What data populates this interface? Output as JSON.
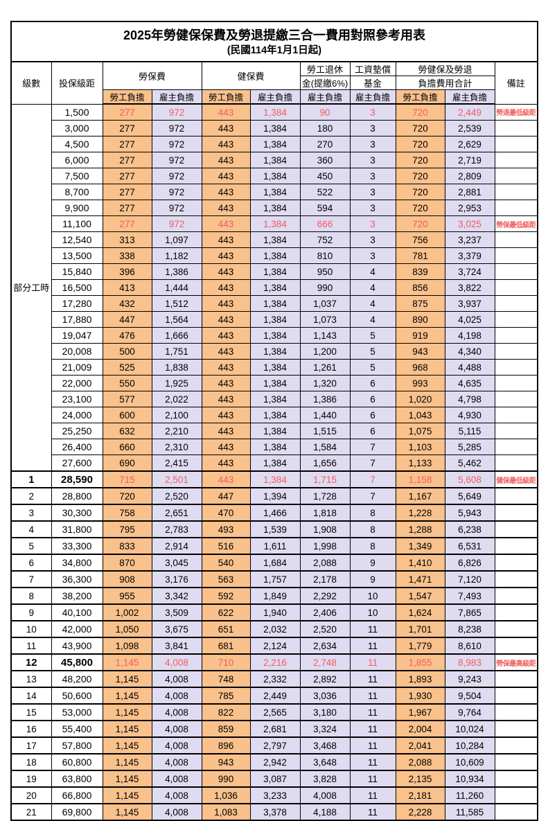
{
  "title": "2025年勞健保保費及勞退提繳三合一費用對照參考用表",
  "subtitle": "(民國114年1月1日起)",
  "columns": {
    "level": "級數",
    "bracket": "投保級距",
    "labor_insurance": "勞保費",
    "health_insurance": "健保費",
    "pension_line1": "勞工退休",
    "pension_line2": "金(提繳6%)",
    "wage_fund_line1": "工資墊償",
    "wage_fund_line2": "基金",
    "total_line1": "勞健保及勞退",
    "total_line2": "負擔費用合計",
    "remark": "備註",
    "employee": "勞工負擔",
    "employer": "雇主負擔"
  },
  "part_time_label": "部分工時",
  "colors": {
    "employee_bg": "#F9C18C",
    "employer_bg": "#DFDBF1",
    "highlight_text": "#F25C5C"
  },
  "rows": [
    {
      "level": "",
      "bracket": "1,500",
      "li_emp": "277",
      "li_er": "972",
      "hi_emp": "443",
      "hi_er": "1,384",
      "pension": "90",
      "fund": "3",
      "tot_emp": "720",
      "tot_er": "2,449",
      "remark": "勞退最低級距",
      "red": true,
      "bold": false
    },
    {
      "level": "",
      "bracket": "3,000",
      "li_emp": "277",
      "li_er": "972",
      "hi_emp": "443",
      "hi_er": "1,384",
      "pension": "180",
      "fund": "3",
      "tot_emp": "720",
      "tot_er": "2,539",
      "remark": "",
      "red": false,
      "bold": false
    },
    {
      "level": "",
      "bracket": "4,500",
      "li_emp": "277",
      "li_er": "972",
      "hi_emp": "443",
      "hi_er": "1,384",
      "pension": "270",
      "fund": "3",
      "tot_emp": "720",
      "tot_er": "2,629",
      "remark": "",
      "red": false,
      "bold": false
    },
    {
      "level": "",
      "bracket": "6,000",
      "li_emp": "277",
      "li_er": "972",
      "hi_emp": "443",
      "hi_er": "1,384",
      "pension": "360",
      "fund": "3",
      "tot_emp": "720",
      "tot_er": "2,719",
      "remark": "",
      "red": false,
      "bold": false
    },
    {
      "level": "",
      "bracket": "7,500",
      "li_emp": "277",
      "li_er": "972",
      "hi_emp": "443",
      "hi_er": "1,384",
      "pension": "450",
      "fund": "3",
      "tot_emp": "720",
      "tot_er": "2,809",
      "remark": "",
      "red": false,
      "bold": false
    },
    {
      "level": "",
      "bracket": "8,700",
      "li_emp": "277",
      "li_er": "972",
      "hi_emp": "443",
      "hi_er": "1,384",
      "pension": "522",
      "fund": "3",
      "tot_emp": "720",
      "tot_er": "2,881",
      "remark": "",
      "red": false,
      "bold": false
    },
    {
      "level": "",
      "bracket": "9,900",
      "li_emp": "277",
      "li_er": "972",
      "hi_emp": "443",
      "hi_er": "1,384",
      "pension": "594",
      "fund": "3",
      "tot_emp": "720",
      "tot_er": "2,953",
      "remark": "",
      "red": false,
      "bold": false
    },
    {
      "level": "",
      "bracket": "11,100",
      "li_emp": "277",
      "li_er": "972",
      "hi_emp": "443",
      "hi_er": "1,384",
      "pension": "666",
      "fund": "3",
      "tot_emp": "720",
      "tot_er": "3,025",
      "remark": "勞保最低級距",
      "red": true,
      "bold": false
    },
    {
      "level": "",
      "bracket": "12,540",
      "li_emp": "313",
      "li_er": "1,097",
      "hi_emp": "443",
      "hi_er": "1,384",
      "pension": "752",
      "fund": "3",
      "tot_emp": "756",
      "tot_er": "3,237",
      "remark": "",
      "red": false,
      "bold": false
    },
    {
      "level": "",
      "bracket": "13,500",
      "li_emp": "338",
      "li_er": "1,182",
      "hi_emp": "443",
      "hi_er": "1,384",
      "pension": "810",
      "fund": "3",
      "tot_emp": "781",
      "tot_er": "3,379",
      "remark": "",
      "red": false,
      "bold": false
    },
    {
      "level": "",
      "bracket": "15,840",
      "li_emp": "396",
      "li_er": "1,386",
      "hi_emp": "443",
      "hi_er": "1,384",
      "pension": "950",
      "fund": "4",
      "tot_emp": "839",
      "tot_er": "3,724",
      "remark": "",
      "red": false,
      "bold": false
    },
    {
      "level": "",
      "bracket": "16,500",
      "li_emp": "413",
      "li_er": "1,444",
      "hi_emp": "443",
      "hi_er": "1,384",
      "pension": "990",
      "fund": "4",
      "tot_emp": "856",
      "tot_er": "3,822",
      "remark": "",
      "red": false,
      "bold": false
    },
    {
      "level": "",
      "bracket": "17,280",
      "li_emp": "432",
      "li_er": "1,512",
      "hi_emp": "443",
      "hi_er": "1,384",
      "pension": "1,037",
      "fund": "4",
      "tot_emp": "875",
      "tot_er": "3,937",
      "remark": "",
      "red": false,
      "bold": false
    },
    {
      "level": "",
      "bracket": "17,880",
      "li_emp": "447",
      "li_er": "1,564",
      "hi_emp": "443",
      "hi_er": "1,384",
      "pension": "1,073",
      "fund": "4",
      "tot_emp": "890",
      "tot_er": "4,025",
      "remark": "",
      "red": false,
      "bold": false
    },
    {
      "level": "",
      "bracket": "19,047",
      "li_emp": "476",
      "li_er": "1,666",
      "hi_emp": "443",
      "hi_er": "1,384",
      "pension": "1,143",
      "fund": "5",
      "tot_emp": "919",
      "tot_er": "4,198",
      "remark": "",
      "red": false,
      "bold": false
    },
    {
      "level": "",
      "bracket": "20,008",
      "li_emp": "500",
      "li_er": "1,751",
      "hi_emp": "443",
      "hi_er": "1,384",
      "pension": "1,200",
      "fund": "5",
      "tot_emp": "943",
      "tot_er": "4,340",
      "remark": "",
      "red": false,
      "bold": false
    },
    {
      "level": "",
      "bracket": "21,009",
      "li_emp": "525",
      "li_er": "1,838",
      "hi_emp": "443",
      "hi_er": "1,384",
      "pension": "1,261",
      "fund": "5",
      "tot_emp": "968",
      "tot_er": "4,488",
      "remark": "",
      "red": false,
      "bold": false
    },
    {
      "level": "",
      "bracket": "22,000",
      "li_emp": "550",
      "li_er": "1,925",
      "hi_emp": "443",
      "hi_er": "1,384",
      "pension": "1,320",
      "fund": "6",
      "tot_emp": "993",
      "tot_er": "4,635",
      "remark": "",
      "red": false,
      "bold": false
    },
    {
      "level": "",
      "bracket": "23,100",
      "li_emp": "577",
      "li_er": "2,022",
      "hi_emp": "443",
      "hi_er": "1,384",
      "pension": "1,386",
      "fund": "6",
      "tot_emp": "1,020",
      "tot_er": "4,798",
      "remark": "",
      "red": false,
      "bold": false
    },
    {
      "level": "",
      "bracket": "24,000",
      "li_emp": "600",
      "li_er": "2,100",
      "hi_emp": "443",
      "hi_er": "1,384",
      "pension": "1,440",
      "fund": "6",
      "tot_emp": "1,043",
      "tot_er": "4,930",
      "remark": "",
      "red": false,
      "bold": false
    },
    {
      "level": "",
      "bracket": "25,250",
      "li_emp": "632",
      "li_er": "2,210",
      "hi_emp": "443",
      "hi_er": "1,384",
      "pension": "1,515",
      "fund": "6",
      "tot_emp": "1,075",
      "tot_er": "5,115",
      "remark": "",
      "red": false,
      "bold": false
    },
    {
      "level": "",
      "bracket": "26,400",
      "li_emp": "660",
      "li_er": "2,310",
      "hi_emp": "443",
      "hi_er": "1,384",
      "pension": "1,584",
      "fund": "7",
      "tot_emp": "1,103",
      "tot_er": "5,285",
      "remark": "",
      "red": false,
      "bold": false
    },
    {
      "level": "",
      "bracket": "27,600",
      "li_emp": "690",
      "li_er": "2,415",
      "hi_emp": "443",
      "hi_er": "1,384",
      "pension": "1,656",
      "fund": "7",
      "tot_emp": "1,133",
      "tot_er": "5,462",
      "remark": "",
      "red": false,
      "bold": false
    },
    {
      "level": "1",
      "bracket": "28,590",
      "li_emp": "715",
      "li_er": "2,501",
      "hi_emp": "443",
      "hi_er": "1,384",
      "pension": "1,715",
      "fund": "7",
      "tot_emp": "1,158",
      "tot_er": "5,608",
      "remark": "健保最低級距",
      "red": true,
      "bold": true
    },
    {
      "level": "2",
      "bracket": "28,800",
      "li_emp": "720",
      "li_er": "2,520",
      "hi_emp": "447",
      "hi_er": "1,394",
      "pension": "1,728",
      "fund": "7",
      "tot_emp": "1,167",
      "tot_er": "5,649",
      "remark": "",
      "red": false,
      "bold": false
    },
    {
      "level": "3",
      "bracket": "30,300",
      "li_emp": "758",
      "li_er": "2,651",
      "hi_emp": "470",
      "hi_er": "1,466",
      "pension": "1,818",
      "fund": "8",
      "tot_emp": "1,228",
      "tot_er": "5,943",
      "remark": "",
      "red": false,
      "bold": false
    },
    {
      "level": "4",
      "bracket": "31,800",
      "li_emp": "795",
      "li_er": "2,783",
      "hi_emp": "493",
      "hi_er": "1,539",
      "pension": "1,908",
      "fund": "8",
      "tot_emp": "1,288",
      "tot_er": "6,238",
      "remark": "",
      "red": false,
      "bold": false
    },
    {
      "level": "5",
      "bracket": "33,300",
      "li_emp": "833",
      "li_er": "2,914",
      "hi_emp": "516",
      "hi_er": "1,611",
      "pension": "1,998",
      "fund": "8",
      "tot_emp": "1,349",
      "tot_er": "6,531",
      "remark": "",
      "red": false,
      "bold": false
    },
    {
      "level": "6",
      "bracket": "34,800",
      "li_emp": "870",
      "li_er": "3,045",
      "hi_emp": "540",
      "hi_er": "1,684",
      "pension": "2,088",
      "fund": "9",
      "tot_emp": "1,410",
      "tot_er": "6,826",
      "remark": "",
      "red": false,
      "bold": false
    },
    {
      "level": "7",
      "bracket": "36,300",
      "li_emp": "908",
      "li_er": "3,176",
      "hi_emp": "563",
      "hi_er": "1,757",
      "pension": "2,178",
      "fund": "9",
      "tot_emp": "1,471",
      "tot_er": "7,120",
      "remark": "",
      "red": false,
      "bold": false
    },
    {
      "level": "8",
      "bracket": "38,200",
      "li_emp": "955",
      "li_er": "3,342",
      "hi_emp": "592",
      "hi_er": "1,849",
      "pension": "2,292",
      "fund": "10",
      "tot_emp": "1,547",
      "tot_er": "7,493",
      "remark": "",
      "red": false,
      "bold": false
    },
    {
      "level": "9",
      "bracket": "40,100",
      "li_emp": "1,002",
      "li_er": "3,509",
      "hi_emp": "622",
      "hi_er": "1,940",
      "pension": "2,406",
      "fund": "10",
      "tot_emp": "1,624",
      "tot_er": "7,865",
      "remark": "",
      "red": false,
      "bold": false
    },
    {
      "level": "10",
      "bracket": "42,000",
      "li_emp": "1,050",
      "li_er": "3,675",
      "hi_emp": "651",
      "hi_er": "2,032",
      "pension": "2,520",
      "fund": "11",
      "tot_emp": "1,701",
      "tot_er": "8,238",
      "remark": "",
      "red": false,
      "bold": false
    },
    {
      "level": "11",
      "bracket": "43,900",
      "li_emp": "1,098",
      "li_er": "3,841",
      "hi_emp": "681",
      "hi_er": "2,124",
      "pension": "2,634",
      "fund": "11",
      "tot_emp": "1,779",
      "tot_er": "8,610",
      "remark": "",
      "red": false,
      "bold": false
    },
    {
      "level": "12",
      "bracket": "45,800",
      "li_emp": "1,145",
      "li_er": "4,008",
      "hi_emp": "710",
      "hi_er": "2,216",
      "pension": "2,748",
      "fund": "11",
      "tot_emp": "1,855",
      "tot_er": "8,983",
      "remark": "勞保最高級距",
      "red": true,
      "bold": true
    },
    {
      "level": "13",
      "bracket": "48,200",
      "li_emp": "1,145",
      "li_er": "4,008",
      "hi_emp": "748",
      "hi_er": "2,332",
      "pension": "2,892",
      "fund": "11",
      "tot_emp": "1,893",
      "tot_er": "9,243",
      "remark": "",
      "red": false,
      "bold": false
    },
    {
      "level": "14",
      "bracket": "50,600",
      "li_emp": "1,145",
      "li_er": "4,008",
      "hi_emp": "785",
      "hi_er": "2,449",
      "pension": "3,036",
      "fund": "11",
      "tot_emp": "1,930",
      "tot_er": "9,504",
      "remark": "",
      "red": false,
      "bold": false
    },
    {
      "level": "15",
      "bracket": "53,000",
      "li_emp": "1,145",
      "li_er": "4,008",
      "hi_emp": "822",
      "hi_er": "2,565",
      "pension": "3,180",
      "fund": "11",
      "tot_emp": "1,967",
      "tot_er": "9,764",
      "remark": "",
      "red": false,
      "bold": false
    },
    {
      "level": "16",
      "bracket": "55,400",
      "li_emp": "1,145",
      "li_er": "4,008",
      "hi_emp": "859",
      "hi_er": "2,681",
      "pension": "3,324",
      "fund": "11",
      "tot_emp": "2,004",
      "tot_er": "10,024",
      "remark": "",
      "red": false,
      "bold": false
    },
    {
      "level": "17",
      "bracket": "57,800",
      "li_emp": "1,145",
      "li_er": "4,008",
      "hi_emp": "896",
      "hi_er": "2,797",
      "pension": "3,468",
      "fund": "11",
      "tot_emp": "2,041",
      "tot_er": "10,284",
      "remark": "",
      "red": false,
      "bold": false
    },
    {
      "level": "18",
      "bracket": "60,800",
      "li_emp": "1,145",
      "li_er": "4,008",
      "hi_emp": "943",
      "hi_er": "2,942",
      "pension": "3,648",
      "fund": "11",
      "tot_emp": "2,088",
      "tot_er": "10,609",
      "remark": "",
      "red": false,
      "bold": false
    },
    {
      "level": "19",
      "bracket": "63,800",
      "li_emp": "1,145",
      "li_er": "4,008",
      "hi_emp": "990",
      "hi_er": "3,087",
      "pension": "3,828",
      "fund": "11",
      "tot_emp": "2,135",
      "tot_er": "10,934",
      "remark": "",
      "red": false,
      "bold": false
    },
    {
      "level": "20",
      "bracket": "66,800",
      "li_emp": "1,145",
      "li_er": "4,008",
      "hi_emp": "1,036",
      "hi_er": "3,233",
      "pension": "4,008",
      "fund": "11",
      "tot_emp": "2,181",
      "tot_er": "11,260",
      "remark": "",
      "red": false,
      "bold": false
    },
    {
      "level": "21",
      "bracket": "69,800",
      "li_emp": "1,145",
      "li_er": "4,008",
      "hi_emp": "1,083",
      "hi_er": "3,378",
      "pension": "4,188",
      "fund": "11",
      "tot_emp": "2,228",
      "tot_er": "11,585",
      "remark": "",
      "red": false,
      "bold": false
    }
  ]
}
